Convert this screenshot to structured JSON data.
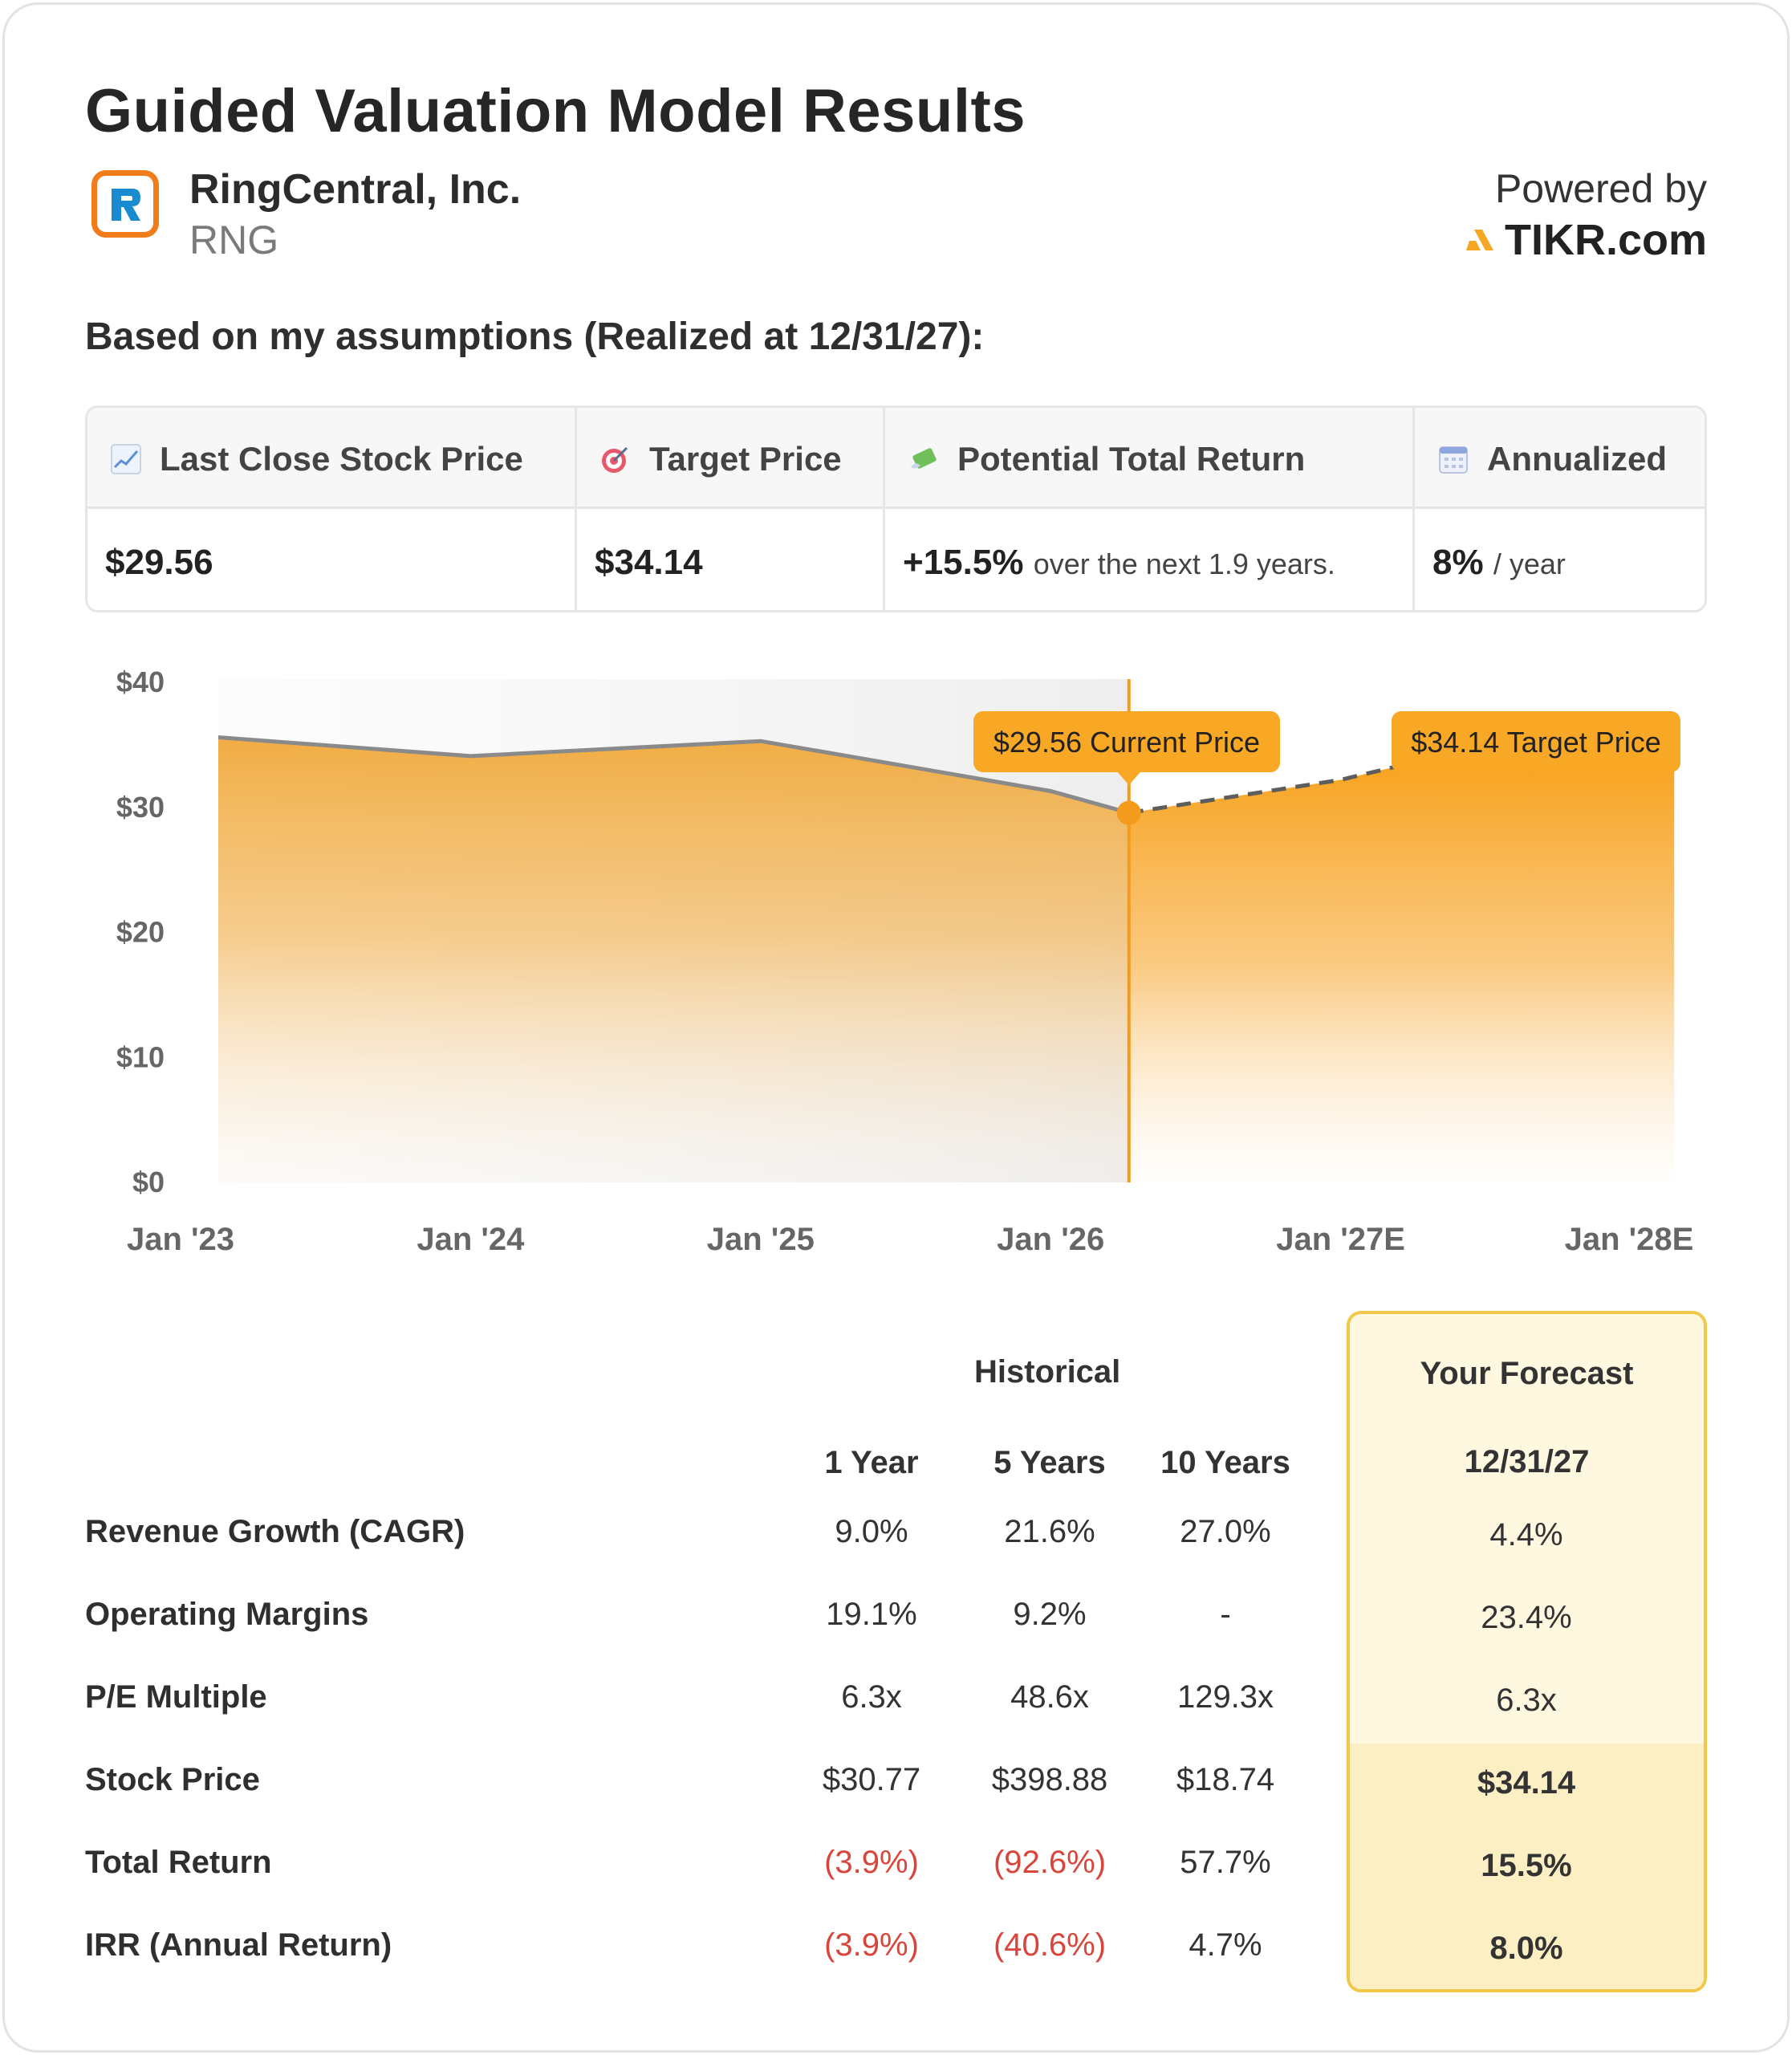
{
  "title": "Guided Valuation Model Results",
  "company": {
    "name": "RingCentral, Inc.",
    "ticker": "RNG",
    "logo_icon": "ringcentral-logo"
  },
  "powered_by": {
    "label": "Powered by",
    "brand": "TIKR.com"
  },
  "assumption_text": "Based on my assumptions (Realized at 12/31/27):",
  "summary": {
    "last_close": {
      "label": "Last Close Stock Price",
      "icon": "chart-increasing-icon",
      "value": "$29.56"
    },
    "target": {
      "label": "Target Price",
      "icon": "target-icon",
      "value": "$34.14"
    },
    "total_return": {
      "label": "Potential Total Return",
      "icon": "money-with-wings-icon",
      "value": "+15.5%",
      "suffix": "over the next 1.9 years."
    },
    "annualized": {
      "label": "Annualized",
      "icon": "calendar-icon",
      "value": "8%",
      "suffix": "/ year"
    }
  },
  "chart_data": {
    "type": "area",
    "x": [
      "Jan '23",
      "Jan '24",
      "Jan '25",
      "Jan '26",
      "Jan '27E",
      "Jan '28E"
    ],
    "ytick_labels": [
      "$40",
      "$30",
      "$20",
      "$10",
      "$0"
    ],
    "ylim": [
      0,
      40
    ],
    "historical": {
      "x_years": [
        2023.0,
        2024.0,
        2025.0,
        2026.0,
        2026.27
      ],
      "values": [
        35.6,
        34.1,
        35.3,
        31.3,
        29.56
      ]
    },
    "forecast": {
      "x_years": [
        2026.27,
        2027.0,
        2027.35,
        2028.15
      ],
      "values": [
        29.56,
        32.2,
        34.14,
        34.14
      ]
    },
    "current_marker": {
      "label": "$29.56 Current Price",
      "value": 29.56
    },
    "target_marker": {
      "label": "$34.14 Target Price",
      "value": 34.14
    },
    "colors": {
      "historical_fill": "#f0a93a",
      "forecast_fill": "#f7a11a",
      "line": "#8a8a8a",
      "marker": "#f59b1c",
      "label_bg": "#f9a825"
    }
  },
  "table": {
    "historical_header": "Historical",
    "forecast_header": "Your Forecast",
    "forecast_date": "12/31/27",
    "columns": [
      "1 Year",
      "5 Years",
      "10 Years"
    ],
    "rows": [
      {
        "label": "Revenue Growth (CAGR)",
        "values": [
          "9.0%",
          "21.6%",
          "27.0%"
        ],
        "forecast": "4.4%"
      },
      {
        "label": "Operating Margins",
        "values": [
          "19.1%",
          "9.2%",
          "-"
        ],
        "forecast": "23.4%"
      },
      {
        "label": "P/E Multiple",
        "values": [
          "6.3x",
          "48.6x",
          "129.3x"
        ],
        "forecast": "6.3x"
      },
      {
        "label": "Stock Price",
        "values": [
          "$30.77",
          "$398.88",
          "$18.74"
        ],
        "forecast": "$34.14"
      },
      {
        "label": "Total Return",
        "values": [
          "(3.9%)",
          "(92.6%)",
          "57.7%"
        ],
        "forecast": "15.5%"
      },
      {
        "label": "IRR (Annual Return)",
        "values": [
          "(3.9%)",
          "(40.6%)",
          "4.7%"
        ],
        "forecast": "8.0%"
      }
    ]
  }
}
